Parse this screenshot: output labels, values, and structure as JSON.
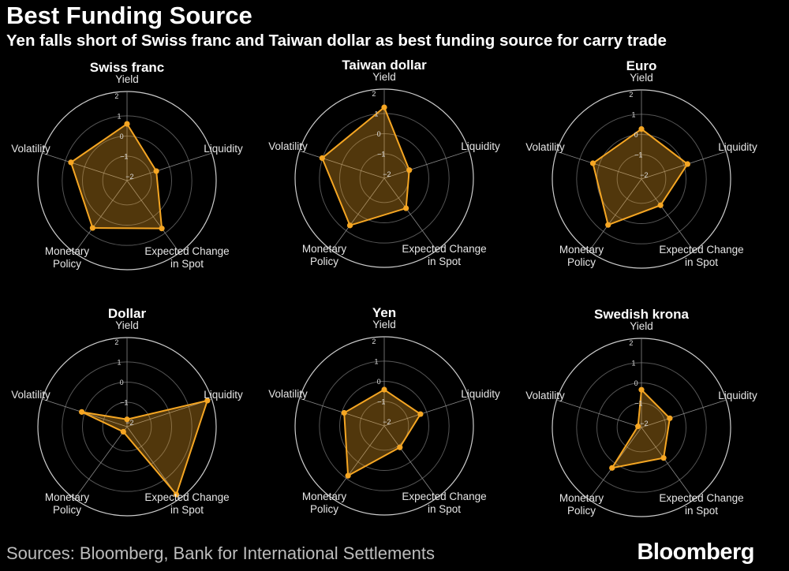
{
  "title": "Best Funding Source",
  "subtitle": "Yen falls short of Swiss franc and Taiwan dollar as best funding source for carry trade",
  "source": "Sources: Bloomberg, Bank for International Settlements",
  "logo": "Bloomberg",
  "colors": {
    "series": "#f5a623",
    "fill": "#5a3d00",
    "grid": "#555555",
    "outer_ring": "#cccccc",
    "background": "#000000"
  },
  "chart_data": [
    {
      "type": "radar",
      "title": "Swiss franc",
      "axes": [
        "Yield",
        "Liquidity",
        "Expected Change in Spot",
        "Monetary Policy",
        "Volatility"
      ],
      "values": [
        0.6,
        -0.68,
        0.72,
        0.69,
        0.71
      ],
      "rlim": [
        -2.2,
        2.2
      ],
      "ticks": [
        "2",
        "1",
        "0",
        "−1",
        "−2"
      ]
    },
    {
      "type": "radar",
      "title": "Taiwan dollar",
      "axes": [
        "Yield",
        "Liquidity",
        "Expected Change in Spot",
        "Monetary Policy",
        "Volatility"
      ],
      "values": [
        1.3,
        -0.9,
        -0.37,
        0.68,
        1.02
      ],
      "rlim": [
        -2.2,
        2.2
      ],
      "ticks": [
        "2",
        "1",
        "0",
        "−1",
        "−2"
      ]
    },
    {
      "type": "radar",
      "title": "Euro",
      "axes": [
        "Yield",
        "Liquidity",
        "Expected Change in Spot",
        "Monetary Policy",
        "Volatility"
      ],
      "values": [
        0.27,
        0.19,
        -0.6,
        0.6,
        0.32
      ],
      "rlim": [
        -2.2,
        2.2
      ],
      "ticks": [
        "2",
        "1",
        "0",
        "−1",
        "−2"
      ]
    },
    {
      "type": "radar",
      "title": "Dollar",
      "axes": [
        "Yield",
        "Liquidity",
        "Expected Change in Spot",
        "Monetary Policy",
        "Volatility"
      ],
      "values": [
        -1.84,
        1.97,
        1.94,
        -1.89,
        0.15
      ],
      "rlim": [
        -2.2,
        2.2
      ],
      "ticks": [
        "2",
        "1",
        "0",
        "−1",
        "−2"
      ]
    },
    {
      "type": "radar",
      "title": "Yen",
      "axes": [
        "Yield",
        "Liquidity",
        "Expected Change in Spot",
        "Monetary Policy",
        "Volatility"
      ],
      "values": [
        -0.41,
        -0.32,
        -0.89,
        0.84,
        -0.12
      ],
      "rlim": [
        -2.2,
        2.2
      ],
      "ticks": [
        "2",
        "1",
        "0",
        "−1",
        "−2"
      ]
    },
    {
      "type": "radar",
      "title": "Swedish krona",
      "axes": [
        "Yield",
        "Liquidity",
        "Expected Change in Spot",
        "Monetary Policy",
        "Volatility"
      ],
      "values": [
        -0.34,
        -0.73,
        -0.34,
        0.27,
        -2.02
      ],
      "rlim": [
        -2.2,
        2.2
      ],
      "ticks": [
        "2",
        "1",
        "0",
        "−1",
        "−2"
      ]
    }
  ]
}
